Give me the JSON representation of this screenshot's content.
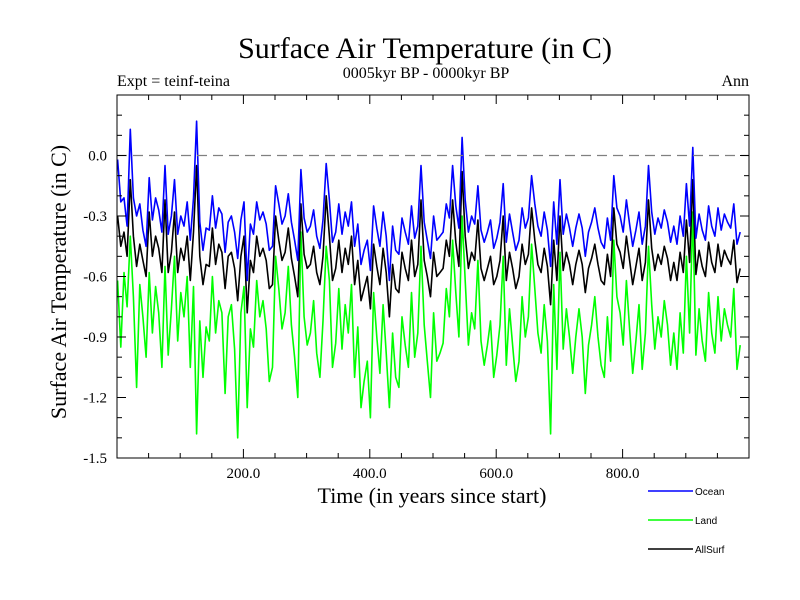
{
  "chart_data": {
    "type": "line",
    "title": "Surface Air Temperature (in C)",
    "subtitle": "0005kyr BP - 0000kyr BP",
    "left_note": "Expt = teinf-teina",
    "right_note": "Ann",
    "xlabel": "Time (in years since start)",
    "ylabel": "Surface Air Temperature (in C)",
    "xlim": [
      0,
      1000
    ],
    "ylim": [
      -1.5,
      0.3
    ],
    "x_ticks": [
      200,
      400,
      600,
      800
    ],
    "x_tick_labels": [
      "200.0",
      "400.0",
      "600.0",
      "800.0"
    ],
    "y_ticks": [
      0.0,
      -0.3,
      -0.6,
      -0.9,
      -1.2,
      -1.5
    ],
    "y_tick_labels": [
      "0.0",
      "-0.3",
      "-0.6",
      "-0.9",
      "-1.2",
      "-1.5"
    ],
    "reference_line": {
      "y": 0.0,
      "style": "dashed",
      "color": "#808080"
    },
    "x_start": 1,
    "x_step": 5,
    "series": [
      {
        "name": "Ocean",
        "color": "#0000ff",
        "values": [
          -0.02,
          -0.23,
          -0.21,
          -0.35,
          0.13,
          -0.21,
          -0.3,
          -0.24,
          -0.37,
          -0.45,
          -0.11,
          -0.32,
          -0.21,
          -0.27,
          -0.38,
          -0.05,
          -0.39,
          -0.3,
          -0.12,
          -0.39,
          -0.3,
          -0.35,
          -0.23,
          -0.42,
          -0.21,
          0.17,
          -0.33,
          -0.47,
          -0.36,
          -0.37,
          -0.2,
          -0.36,
          -0.26,
          -0.29,
          -0.48,
          -0.33,
          -0.3,
          -0.38,
          -0.51,
          -0.32,
          -0.23,
          -0.62,
          -0.34,
          -0.39,
          -0.23,
          -0.32,
          -0.28,
          -0.34,
          -0.47,
          -0.45,
          -0.15,
          -0.24,
          -0.34,
          -0.3,
          -0.19,
          -0.33,
          -0.42,
          -0.52,
          -0.07,
          -0.31,
          -0.38,
          -0.35,
          -0.27,
          -0.4,
          -0.46,
          -0.32,
          -0.04,
          -0.22,
          -0.43,
          -0.38,
          -0.24,
          -0.39,
          -0.28,
          -0.35,
          -0.23,
          -0.45,
          -0.34,
          -0.54,
          -0.47,
          -0.42,
          -0.57,
          -0.25,
          -0.36,
          -0.45,
          -0.28,
          -0.4,
          -0.62,
          -0.35,
          -0.47,
          -0.49,
          -0.31,
          -0.38,
          -0.44,
          -0.25,
          -0.41,
          -0.35,
          -0.05,
          -0.33,
          -0.42,
          -0.51,
          -0.3,
          -0.42,
          -0.4,
          -0.38,
          -0.24,
          -0.31,
          -0.05,
          -0.25,
          -0.36,
          0.09,
          -0.22,
          -0.38,
          -0.3,
          -0.34,
          -0.15,
          -0.37,
          -0.43,
          -0.38,
          -0.32,
          -0.46,
          -0.41,
          -0.33,
          -0.14,
          -0.43,
          -0.29,
          -0.38,
          -0.47,
          -0.42,
          -0.26,
          -0.36,
          -0.31,
          -0.1,
          -0.24,
          -0.35,
          -0.4,
          -0.28,
          -0.37,
          -0.55,
          -0.23,
          -0.44,
          -0.12,
          -0.39,
          -0.29,
          -0.36,
          -0.45,
          -0.36,
          -0.29,
          -0.36,
          -0.5,
          -0.38,
          -0.33,
          -0.26,
          -0.36,
          -0.43,
          -0.46,
          -0.31,
          -0.42,
          -0.1,
          -0.26,
          -0.3,
          -0.38,
          -0.22,
          -0.34,
          -0.45,
          -0.37,
          -0.28,
          -0.44,
          -0.35,
          -0.05,
          -0.28,
          -0.39,
          -0.31,
          -0.36,
          -0.27,
          -0.33,
          -0.43,
          -0.35,
          -0.44,
          -0.3,
          -0.4,
          -0.14,
          -0.35,
          0.04,
          -0.41,
          -0.29,
          -0.37,
          -0.42,
          -0.25,
          -0.35,
          -0.4,
          -0.26,
          -0.37,
          -0.29,
          -0.33,
          -0.36,
          -0.24,
          -0.44,
          -0.38
        ]
      },
      {
        "name": "Land",
        "color": "#00ff00",
        "values": [
          -0.62,
          -0.95,
          -0.58,
          -0.75,
          -0.4,
          -0.7,
          -1.15,
          -0.64,
          -0.8,
          -1.0,
          -0.58,
          -0.88,
          -0.65,
          -0.78,
          -1.05,
          -0.55,
          -0.99,
          -0.76,
          -0.5,
          -0.92,
          -0.68,
          -0.8,
          -0.6,
          -1.05,
          -0.65,
          -1.38,
          -0.82,
          -1.1,
          -0.85,
          -0.92,
          -0.6,
          -0.88,
          -0.72,
          -0.78,
          -1.18,
          -0.8,
          -0.74,
          -0.96,
          -1.4,
          -0.78,
          -0.65,
          -1.25,
          -0.86,
          -0.95,
          -0.62,
          -0.8,
          -0.72,
          -0.86,
          -1.12,
          -1.05,
          -0.5,
          -0.66,
          -0.86,
          -0.78,
          -0.55,
          -0.84,
          -1.0,
          -1.2,
          -0.38,
          -0.8,
          -0.94,
          -0.88,
          -0.72,
          -0.98,
          -1.1,
          -0.82,
          -0.45,
          -0.62,
          -1.05,
          -0.93,
          -0.66,
          -0.96,
          -0.74,
          -0.88,
          -0.64,
          -1.1,
          -0.85,
          -1.25,
          -1.12,
          -1.02,
          -1.3,
          -0.68,
          -0.9,
          -1.08,
          -0.74,
          -0.98,
          -1.25,
          -0.88,
          -1.1,
          -1.15,
          -0.8,
          -0.94,
          -1.05,
          -0.68,
          -1.0,
          -0.88,
          -0.45,
          -0.84,
          -1.02,
          -1.2,
          -0.78,
          -1.02,
          -0.98,
          -0.93,
          -0.66,
          -0.8,
          -0.42,
          -0.68,
          -0.9,
          -0.3,
          -0.62,
          -0.94,
          -0.78,
          -0.86,
          -0.52,
          -0.92,
          -1.04,
          -0.94,
          -0.82,
          -1.1,
          -0.99,
          -0.84,
          -0.5,
          -1.04,
          -0.76,
          -0.94,
          -1.12,
          -1.02,
          -0.7,
          -0.9,
          -0.8,
          -0.44,
          -0.66,
          -0.88,
          -0.98,
          -0.74,
          -0.92,
          -1.38,
          -0.64,
          -1.06,
          -0.48,
          -0.96,
          -0.76,
          -0.9,
          -1.08,
          -0.9,
          -0.76,
          -0.9,
          -1.18,
          -0.94,
          -0.84,
          -0.7,
          -0.9,
          -1.04,
          -1.1,
          -0.8,
          -1.02,
          -0.42,
          -0.7,
          -0.78,
          -0.94,
          -0.62,
          -0.86,
          -1.08,
          -0.92,
          -0.74,
          -1.06,
          -0.88,
          -0.45,
          -0.74,
          -0.96,
          -0.8,
          -0.9,
          -0.72,
          -0.84,
          -1.04,
          -0.88,
          -1.06,
          -0.78,
          -0.98,
          -0.5,
          -0.88,
          -0.28,
          -0.99,
          -0.76,
          -0.92,
          -1.02,
          -0.68,
          -0.88,
          -0.98,
          -0.7,
          -0.92,
          -0.76,
          -0.84,
          -0.9,
          -0.66,
          -1.06,
          -0.94
        ]
      },
      {
        "name": "AllSurf",
        "color": "#000000",
        "values": [
          -0.3,
          -0.45,
          -0.38,
          -0.5,
          -0.12,
          -0.4,
          -0.55,
          -0.44,
          -0.52,
          -0.6,
          -0.28,
          -0.5,
          -0.4,
          -0.46,
          -0.58,
          -0.22,
          -0.58,
          -0.48,
          -0.28,
          -0.58,
          -0.46,
          -0.52,
          -0.4,
          -0.62,
          -0.38,
          -0.05,
          -0.5,
          -0.64,
          -0.54,
          -0.55,
          -0.36,
          -0.54,
          -0.44,
          -0.48,
          -0.66,
          -0.5,
          -0.48,
          -0.56,
          -0.72,
          -0.5,
          -0.4,
          -0.78,
          -0.52,
          -0.58,
          -0.4,
          -0.5,
          -0.46,
          -0.52,
          -0.66,
          -0.64,
          -0.3,
          -0.42,
          -0.52,
          -0.48,
          -0.36,
          -0.51,
          -0.6,
          -0.7,
          -0.24,
          -0.49,
          -0.56,
          -0.54,
          -0.45,
          -0.58,
          -0.64,
          -0.5,
          -0.2,
          -0.4,
          -0.62,
          -0.56,
          -0.42,
          -0.58,
          -0.46,
          -0.54,
          -0.4,
          -0.64,
          -0.52,
          -0.72,
          -0.66,
          -0.6,
          -0.76,
          -0.44,
          -0.55,
          -0.64,
          -0.46,
          -0.58,
          -0.8,
          -0.54,
          -0.66,
          -0.68,
          -0.48,
          -0.56,
          -0.62,
          -0.42,
          -0.6,
          -0.54,
          -0.22,
          -0.52,
          -0.6,
          -0.7,
          -0.48,
          -0.6,
          -0.58,
          -0.56,
          -0.42,
          -0.5,
          -0.22,
          -0.43,
          -0.55,
          -0.08,
          -0.4,
          -0.56,
          -0.48,
          -0.52,
          -0.32,
          -0.56,
          -0.62,
          -0.56,
          -0.5,
          -0.64,
          -0.6,
          -0.52,
          -0.3,
          -0.62,
          -0.48,
          -0.56,
          -0.66,
          -0.6,
          -0.44,
          -0.54,
          -0.49,
          -0.26,
          -0.42,
          -0.54,
          -0.58,
          -0.46,
          -0.55,
          -0.74,
          -0.42,
          -0.62,
          -0.3,
          -0.57,
          -0.48,
          -0.54,
          -0.64,
          -0.54,
          -0.47,
          -0.54,
          -0.68,
          -0.56,
          -0.51,
          -0.44,
          -0.54,
          -0.62,
          -0.64,
          -0.49,
          -0.6,
          -0.26,
          -0.44,
          -0.48,
          -0.56,
          -0.4,
          -0.52,
          -0.64,
          -0.55,
          -0.46,
          -0.62,
          -0.53,
          -0.22,
          -0.46,
          -0.57,
          -0.49,
          -0.54,
          -0.45,
          -0.51,
          -0.62,
          -0.53,
          -0.62,
          -0.48,
          -0.58,
          -0.32,
          -0.53,
          -0.12,
          -0.59,
          -0.47,
          -0.55,
          -0.6,
          -0.43,
          -0.53,
          -0.58,
          -0.44,
          -0.55,
          -0.47,
          -0.51,
          -0.54,
          -0.42,
          -0.63,
          -0.56
        ]
      }
    ],
    "legend": [
      {
        "label": "Ocean",
        "color": "#0000ff"
      },
      {
        "label": "Land",
        "color": "#00ff00"
      },
      {
        "label": "AllSurf",
        "color": "#000000"
      }
    ]
  }
}
